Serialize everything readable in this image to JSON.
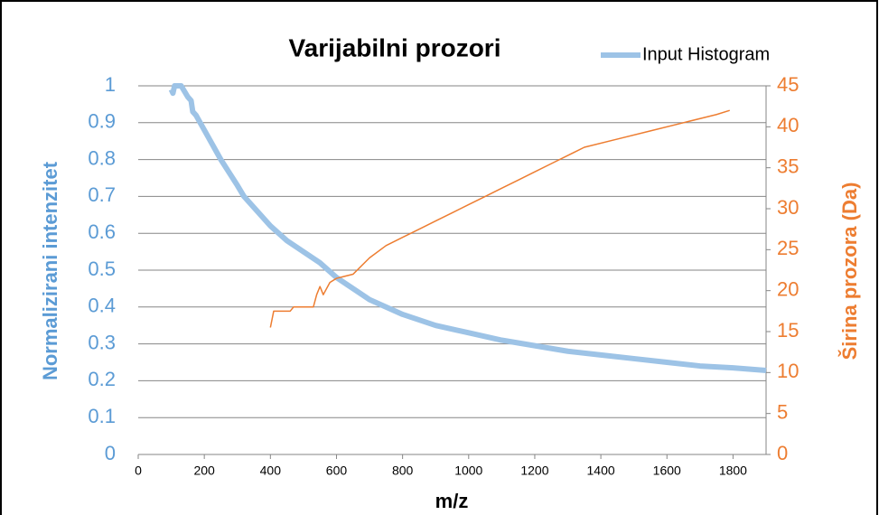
{
  "chart_data": {
    "type": "line",
    "title": "Varijabilni prozori",
    "xlabel": "m/z",
    "ylabel": "Normalizirani intenzitet",
    "y2label": "Širina prozora (Da)",
    "xlim": [
      0,
      1900
    ],
    "xticks": [
      0,
      200,
      400,
      600,
      800,
      1000,
      1200,
      1400,
      1600,
      1800
    ],
    "ylim": [
      0,
      1
    ],
    "yticks": [
      0,
      0.1,
      0.2,
      0.3,
      0.4,
      0.5,
      0.6,
      0.7,
      0.8,
      0.9,
      1
    ],
    "y2lim": [
      0,
      45
    ],
    "y2ticks": [
      0,
      5,
      10,
      15,
      20,
      25,
      30,
      35,
      40,
      45
    ],
    "grid": true,
    "legend": "top-right",
    "ycolor": "#5b9bd5",
    "y2color": "#ed7d31",
    "series": [
      {
        "name": "Input Histogram",
        "color": "#9dc3e6",
        "x": [
          100,
          105,
          110,
          130,
          150,
          160,
          165,
          175,
          200,
          250,
          300,
          320,
          400,
          450,
          500,
          550,
          600,
          650,
          700,
          800,
          900,
          1000,
          1100,
          1200,
          1300,
          1400,
          1500,
          1600,
          1700,
          1800,
          1900
        ],
        "values": [
          0.99,
          0.98,
          1.0,
          1.0,
          0.97,
          0.96,
          0.93,
          0.92,
          0.88,
          0.8,
          0.73,
          0.7,
          0.62,
          0.58,
          0.55,
          0.52,
          0.48,
          0.45,
          0.42,
          0.38,
          0.35,
          0.33,
          0.31,
          0.295,
          0.28,
          0.27,
          0.26,
          0.25,
          0.24,
          0.235,
          0.228
        ]
      },
      {
        "color": "#ed7d31",
        "axis": "y2",
        "x": [
          400,
          410,
          460,
          470,
          530,
          540,
          550,
          560,
          580,
          600,
          650,
          700,
          750,
          800,
          850,
          900,
          950,
          1000,
          1050,
          1100,
          1150,
          1200,
          1250,
          1350,
          1450,
          1550,
          1650,
          1750,
          1790
        ],
        "values": [
          15.5,
          17.5,
          17.5,
          18,
          18,
          19.5,
          20.5,
          19.5,
          21,
          21.5,
          22,
          24,
          25.5,
          26.5,
          27.5,
          28.5,
          29.5,
          30.5,
          31.5,
          32.5,
          33.5,
          34.5,
          35.5,
          37.5,
          38.5,
          39.5,
          40.5,
          41.5,
          42
        ]
      }
    ]
  }
}
